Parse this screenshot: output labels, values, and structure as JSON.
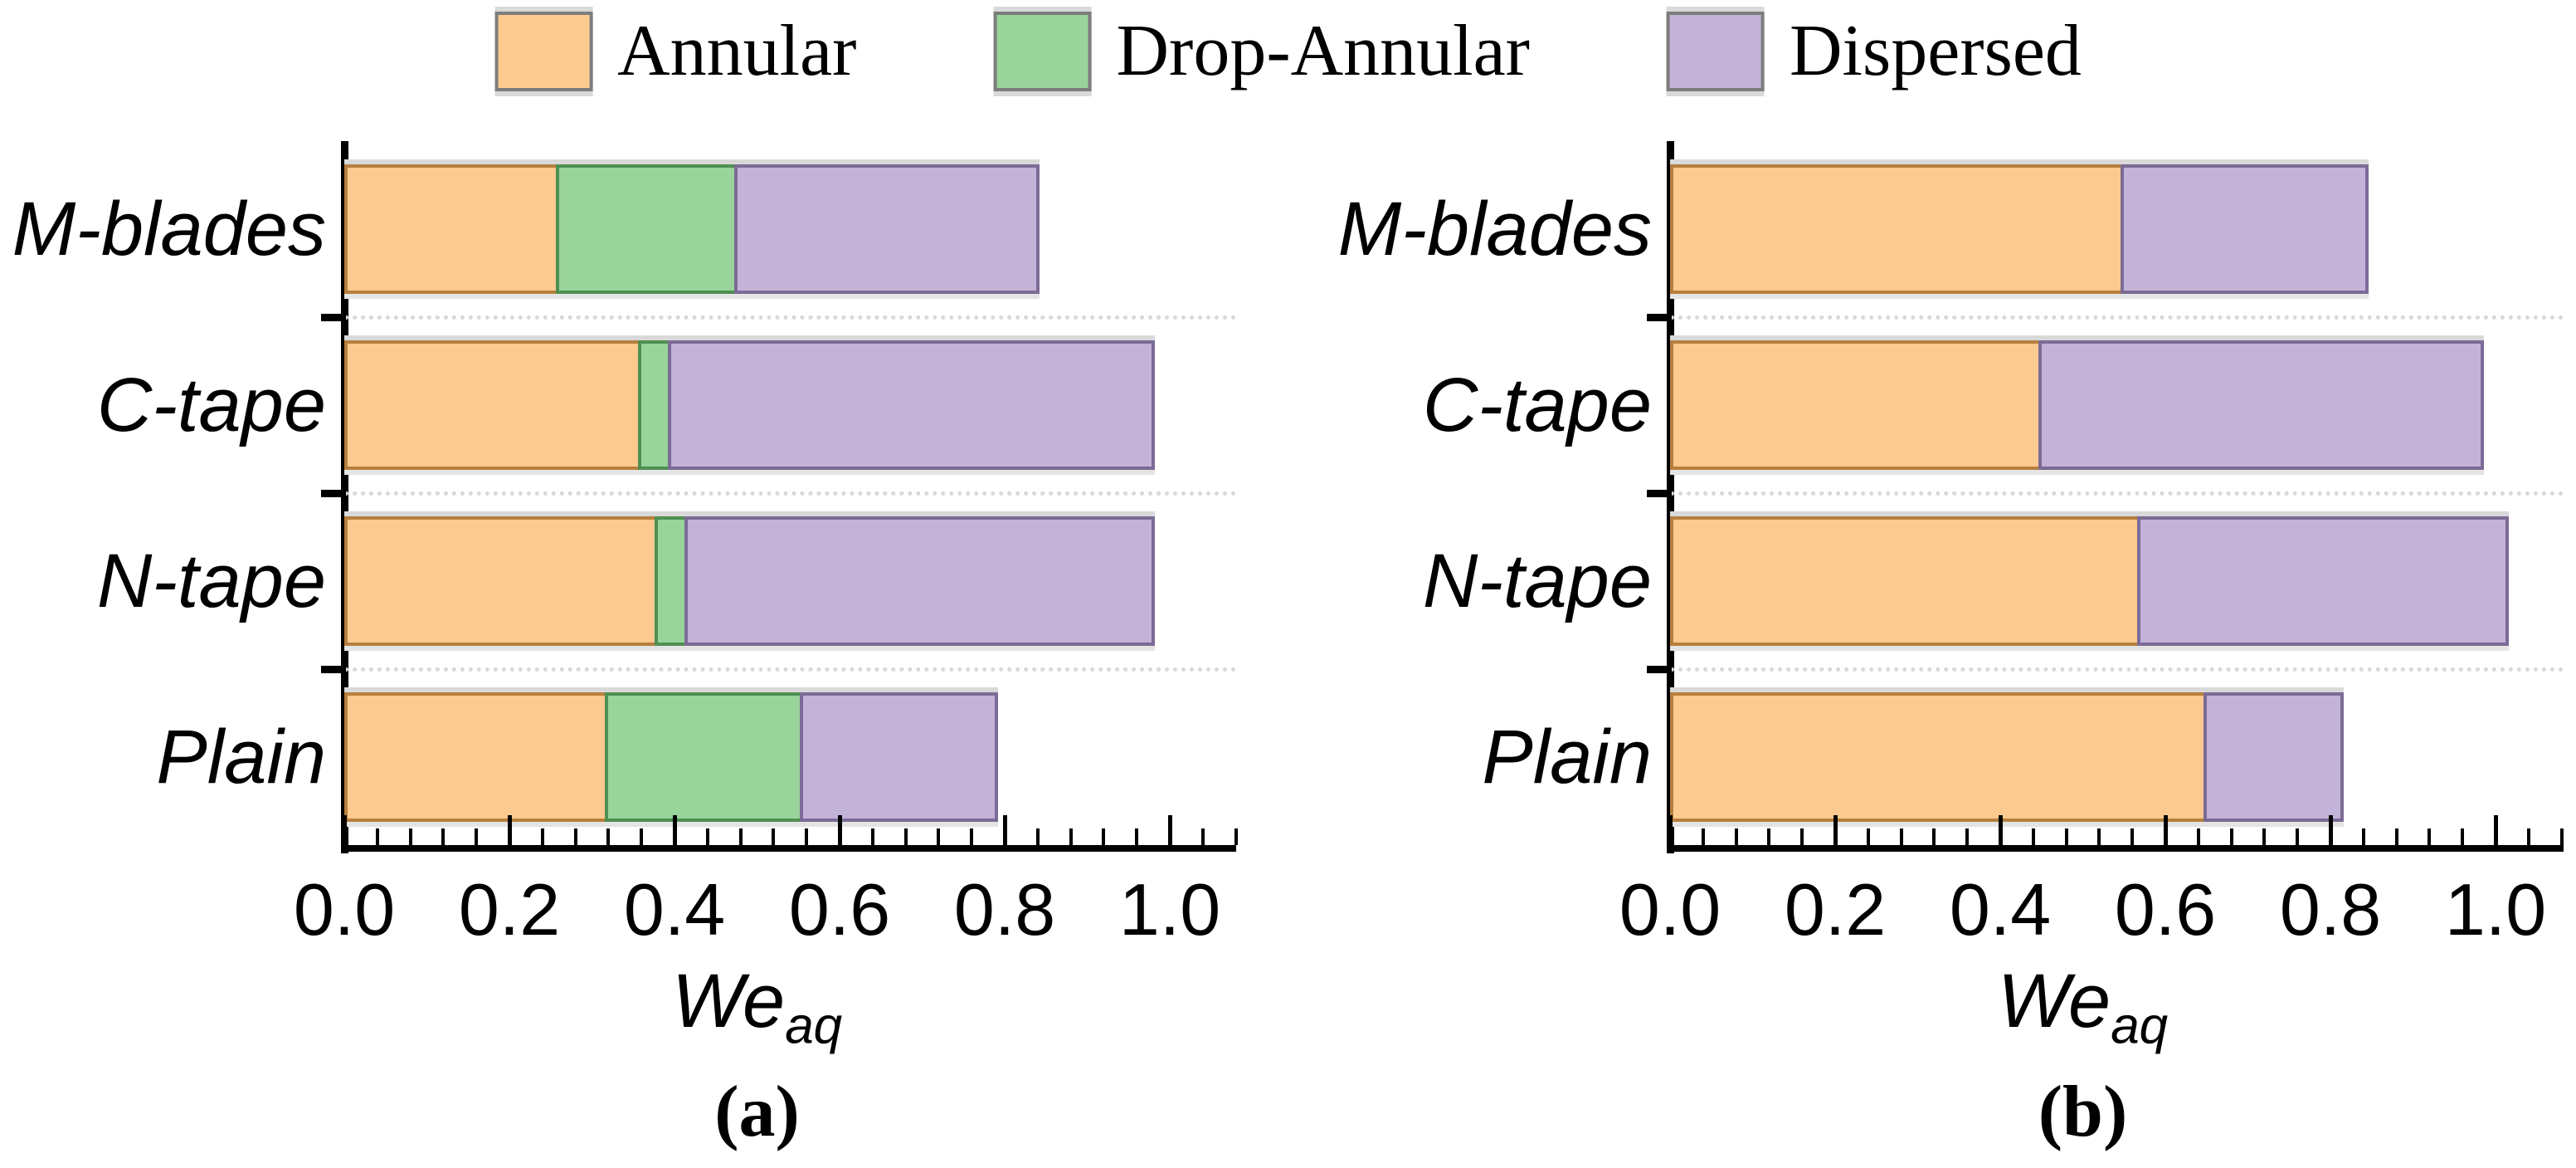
{
  "legend": {
    "items": [
      {
        "label": "Annular",
        "color": "#FCCA8F",
        "border": "#B67F3E"
      },
      {
        "label": "Drop-Annular",
        "color": "#99D49A",
        "border": "#4F8F52"
      },
      {
        "label": "Dispersed",
        "color": "#C4B3D8",
        "border": "#7C6B96"
      }
    ]
  },
  "chart_data": [
    {
      "type": "bar",
      "orientation": "horizontal",
      "stacked": true,
      "panel_label": "(a)",
      "categories": [
        "M-blades",
        "C-tape",
        "N-tape",
        "Plain"
      ],
      "series": [
        {
          "name": "Annular",
          "color": "#FCCA8F",
          "border": "#B67F3E",
          "values": [
            0.26,
            0.36,
            0.38,
            0.32
          ]
        },
        {
          "name": "Drop-Annular",
          "color": "#99D49A",
          "border": "#4F8F52",
          "values": [
            0.22,
            0.04,
            0.04,
            0.24
          ]
        },
        {
          "name": "Dispersed",
          "color": "#C4B3D8",
          "border": "#7C6B96",
          "values": [
            0.37,
            0.59,
            0.57,
            0.24
          ]
        }
      ],
      "xlabel_base": "We",
      "xlabel_sub": "aq",
      "xlim": [
        0,
        1.08
      ],
      "xticks": [
        "0.0",
        "0.2",
        "0.4",
        "0.6",
        "0.8",
        "1.0"
      ],
      "minor_tick_step": 0.04,
      "grid": "dotted-horizontal-at-category-boundaries",
      "legend_position": "top"
    },
    {
      "type": "bar",
      "orientation": "horizontal",
      "stacked": true,
      "panel_label": "(b)",
      "categories": [
        "M-blades",
        "C-tape",
        "N-tape",
        "Plain"
      ],
      "series": [
        {
          "name": "Annular",
          "color": "#FCCA8F",
          "border": "#B67F3E",
          "values": [
            0.55,
            0.45,
            0.57,
            0.65
          ]
        },
        {
          "name": "Drop-Annular",
          "color": "#99D49A",
          "border": "#4F8F52",
          "values": [
            0,
            0,
            0,
            0
          ]
        },
        {
          "name": "Dispersed",
          "color": "#C4B3D8",
          "border": "#7C6B96",
          "values": [
            0.3,
            0.54,
            0.45,
            0.17
          ]
        }
      ],
      "xlabel_base": "We",
      "xlabel_sub": "aq",
      "xlim": [
        0,
        1.08
      ],
      "xticks": [
        "0.0",
        "0.2",
        "0.4",
        "0.6",
        "0.8",
        "1.0"
      ],
      "minor_tick_step": 0.04,
      "grid": "dotted-horizontal-at-category-boundaries",
      "legend_position": "top"
    }
  ]
}
